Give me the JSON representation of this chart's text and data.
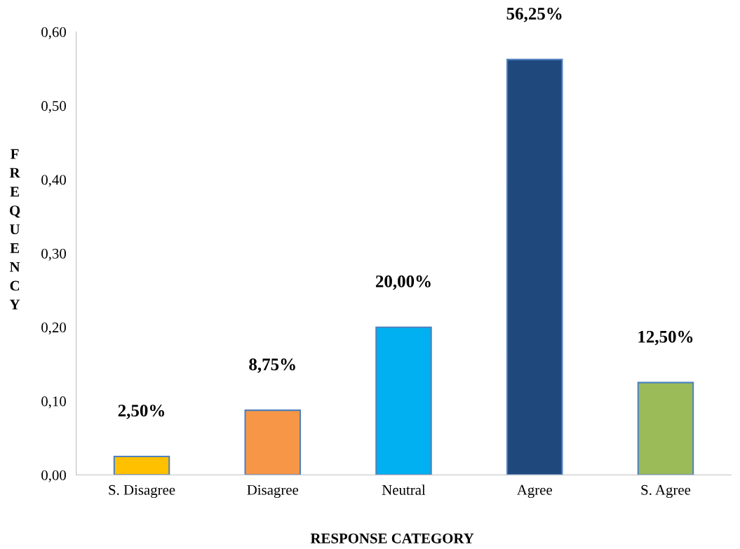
{
  "chart_data": {
    "type": "bar",
    "xlabel": "RESPONSE CATEGORY",
    "ylabel": "FREQUENCY",
    "categories": [
      "S. Disagree",
      "Disagree",
      "Neutral",
      "Agree",
      "S. Agree"
    ],
    "values": [
      0.025,
      0.0875,
      0.2,
      0.5625,
      0.125
    ],
    "colors": [
      "#ffc000",
      "#f79646",
      "#00b0f0",
      "#1f497d",
      "#9bbb59"
    ],
    "value_labels": [
      "2,50%",
      "8,75%",
      "20,00%",
      "56,25%",
      "12,50%"
    ],
    "ylim": [
      0,
      0.6
    ],
    "yticks": [
      {
        "value": 0,
        "label": "0,00"
      },
      {
        "value": 0.1,
        "label": "0,10"
      },
      {
        "value": 0.2,
        "label": "0,20"
      },
      {
        "value": 0.3,
        "label": "0,30"
      },
      {
        "value": 0.4,
        "label": "0,40"
      },
      {
        "value": 0.5,
        "label": "0,50"
      },
      {
        "value": 0.6,
        "label": "0,60"
      }
    ],
    "grid": false,
    "legend": false
  }
}
